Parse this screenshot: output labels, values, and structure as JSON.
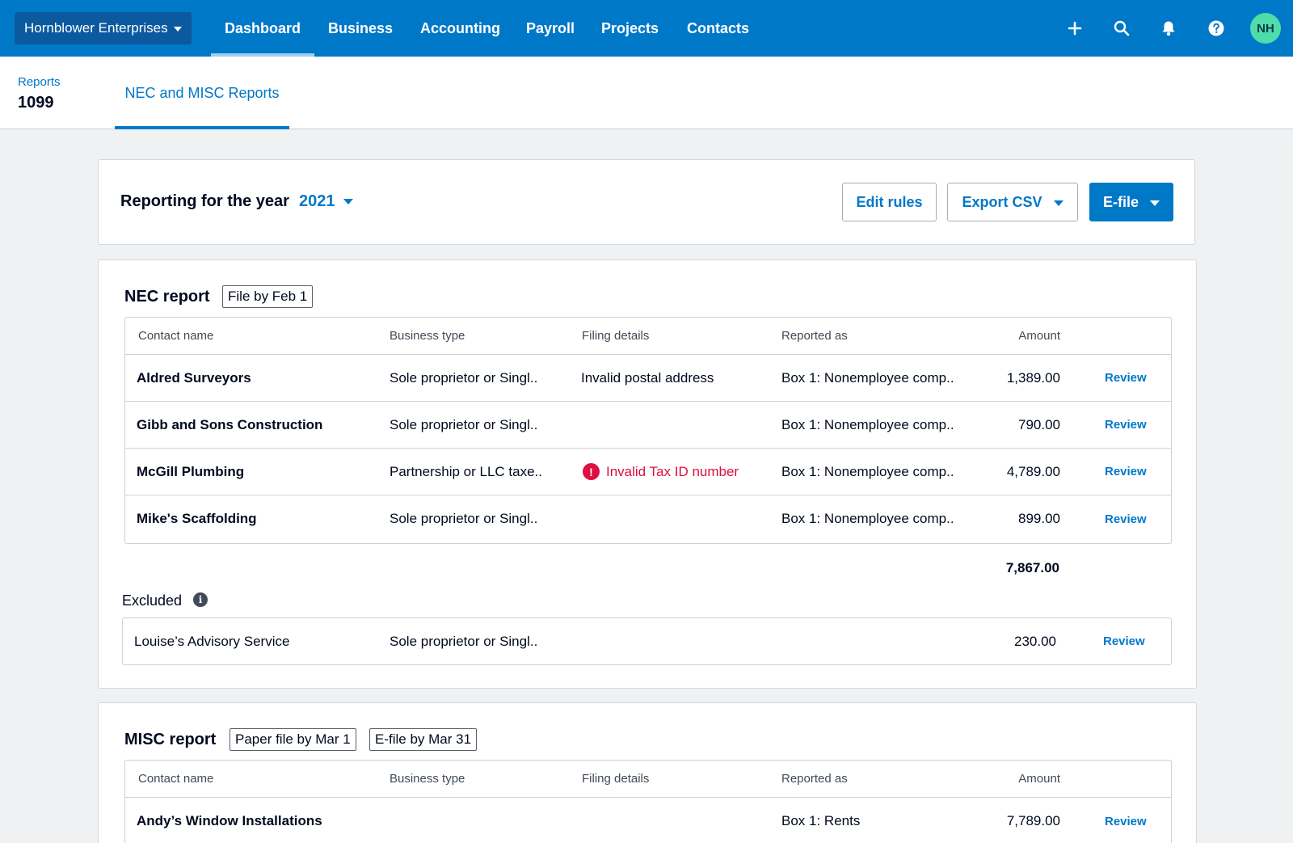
{
  "topnav": {
    "org_name": "Hornblower Enterprises",
    "tabs": [
      {
        "label": "Dashboard",
        "active": true
      },
      {
        "label": "Business"
      },
      {
        "label": "Accounting"
      },
      {
        "label": "Payroll"
      },
      {
        "label": "Projects"
      },
      {
        "label": "Contacts"
      }
    ],
    "icons": [
      "plus-icon",
      "search-icon",
      "bell-icon",
      "help-icon"
    ],
    "avatar_initials": "NH"
  },
  "subheader": {
    "breadcrumb": "Reports",
    "title": "1099",
    "tab_label": "NEC and MISC Reports"
  },
  "year_panel": {
    "label": "Reporting for the year",
    "year": "2021",
    "buttons": {
      "edit_rules": "Edit rules",
      "export_csv": "Export CSV",
      "efile": "E-file"
    }
  },
  "nec": {
    "title": "NEC report",
    "tag": "File by Feb 1",
    "columns": {
      "contact": "Contact name",
      "business_type": "Business type",
      "filing": "Filing details",
      "reported": "Reported as",
      "amount": "Amount"
    },
    "rows": [
      {
        "contact": "Aldred Surveyors",
        "business_type": "Sole proprietor or Singl..",
        "filing": "Invalid postal address",
        "reported": "Box 1: Nonemployee comp..",
        "amount": "1,389.00",
        "action": "Review"
      },
      {
        "contact": "Gibb and Sons Construction",
        "business_type": "Sole proprietor or Singl..",
        "filing": "",
        "reported": "Box 1: Nonemployee comp..",
        "amount": "790.00",
        "action": "Review"
      },
      {
        "contact": "McGill Plumbing",
        "business_type": "Partnership or LLC taxe..",
        "filing": "Invalid Tax ID number",
        "reported": "Box 1: Nonemployee comp..",
        "amount": "4,789.00",
        "action": "Review"
      },
      {
        "contact": "Mike's Scaffolding",
        "business_type": "Sole proprietor or Singl..",
        "filing": "",
        "reported": "Box 1: Nonemployee comp..",
        "amount": "899.00",
        "action": "Review"
      }
    ],
    "total": "7,867.00",
    "excluded_label": "Excluded",
    "excluded_rows": [
      {
        "contact": "Louise’s Advisory Service",
        "business_type": "Sole proprietor or Singl..",
        "amount": "230.00",
        "action": "Review"
      }
    ]
  },
  "misc": {
    "title": "MISC report",
    "tags": [
      "Paper file by Mar 1",
      "E-file by Mar 31"
    ],
    "columns": {
      "contact": "Contact name",
      "business_type": "Business type",
      "filing": "Filing details",
      "reported": "Reported as",
      "amount": "Amount"
    },
    "rows": [
      {
        "contact": "Andy’s Window Installations",
        "business_type": "",
        "filing": "",
        "reported": "Box 1: Rents",
        "amount": "7,789.00",
        "action": "Review"
      }
    ]
  },
  "colors": {
    "brand_blue": "#0078c8",
    "nav_dark": "#0b5aa0",
    "error_red": "#de0e40",
    "avatar_green": "#50dcaa"
  }
}
